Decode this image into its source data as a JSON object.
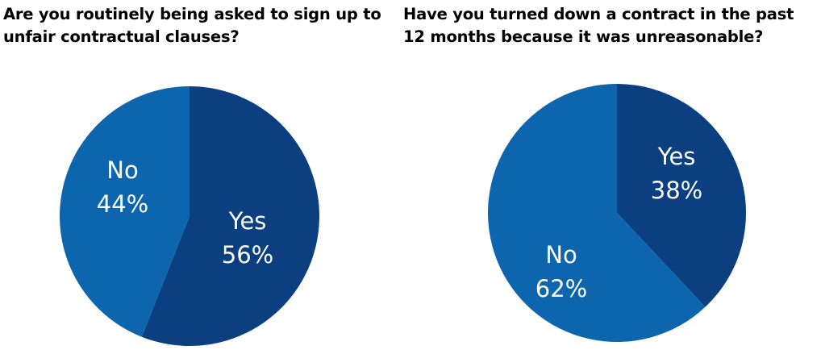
{
  "chart_data": [
    {
      "type": "pie",
      "title": "Are you routinely being asked to sign up to unfair contractual clauses?",
      "slices": [
        {
          "label": "Yes",
          "value": 56,
          "value_label": "56%",
          "color": "#0c3f80"
        },
        {
          "label": "No",
          "value": 44,
          "value_label": "44%",
          "color": "#0d66ad"
        }
      ]
    },
    {
      "type": "pie",
      "title": "Have you turned down a contract in the past 12 months because it was unreasonable?",
      "slices": [
        {
          "label": "Yes",
          "value": 38,
          "value_label": "38%",
          "color": "#0c3f80"
        },
        {
          "label": "No",
          "value": 62,
          "value_label": "62%",
          "color": "#0d66ad"
        }
      ]
    }
  ]
}
